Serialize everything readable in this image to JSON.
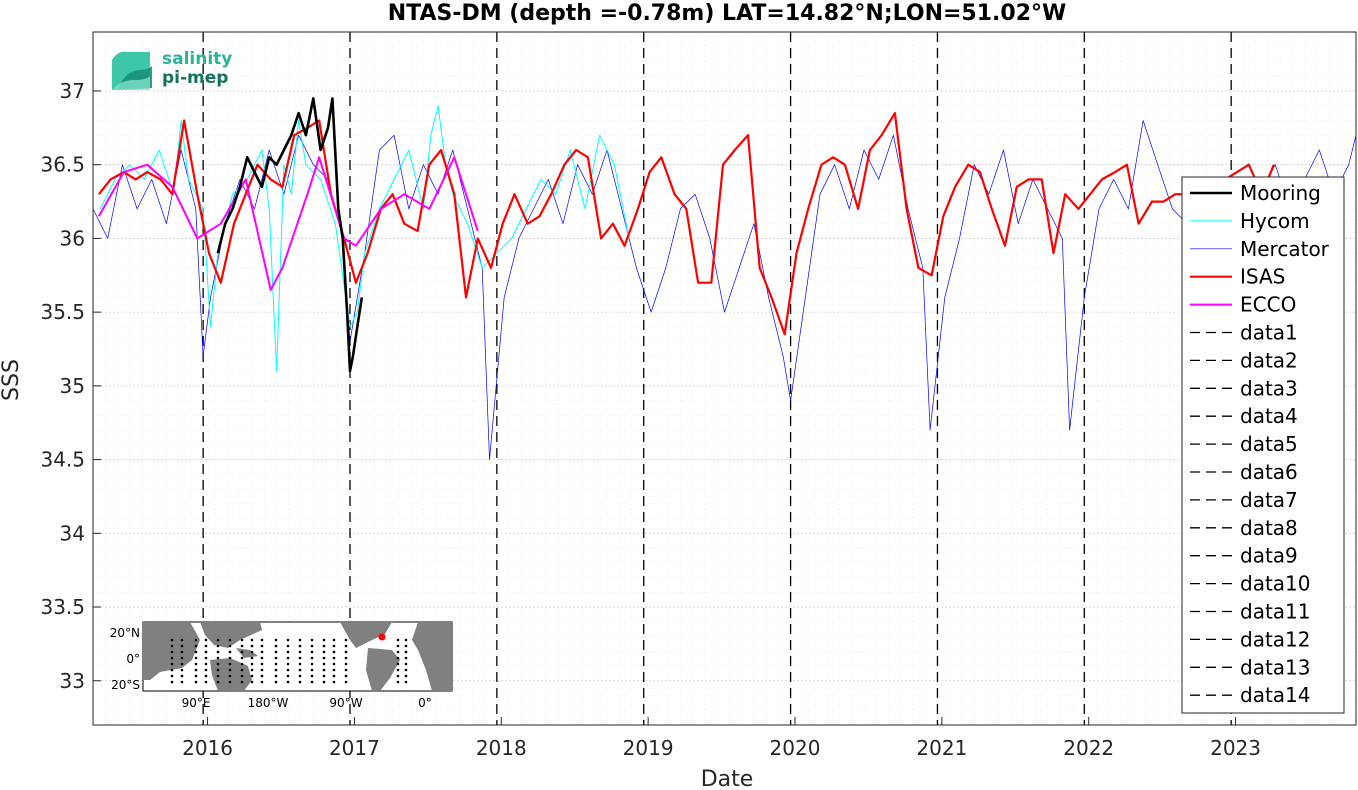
{
  "chart_data": {
    "type": "line",
    "title": "NTAS-DM (depth =-0.78m) LAT=14.82°N;LON=51.02°W",
    "xlabel": "Date",
    "ylabel": "SSS",
    "xlim": [
      2015.25,
      2023.85
    ],
    "ylim": [
      32.7,
      37.4
    ],
    "xticks": [
      2016,
      2017,
      2018,
      2019,
      2020,
      2021,
      2022,
      2023
    ],
    "xtick_labels": [
      "2016",
      "2017",
      "2018",
      "2019",
      "2020",
      "2021",
      "2022",
      "2023"
    ],
    "yticks": [
      33,
      33.5,
      34,
      34.5,
      35,
      35.5,
      36,
      36.5,
      37
    ],
    "ytick_labels": [
      "33",
      "33.5",
      "34",
      "34.5",
      "35",
      "35.5",
      "36",
      "36.5",
      "37"
    ],
    "grid": true,
    "legend_position": "right",
    "series": [
      {
        "name": "Mooring",
        "color": "#000000",
        "width": 2.6,
        "x": [
          2016.1,
          2016.15,
          2016.2,
          2016.25,
          2016.3,
          2016.35,
          2016.4,
          2016.45,
          2016.5,
          2016.55,
          2016.6,
          2016.65,
          2016.7,
          2016.75,
          2016.8,
          2016.85,
          2016.88,
          2016.92,
          2016.95,
          2016.98,
          2017.0,
          2017.02,
          2017.05,
          2017.08
        ],
        "y": [
          35.9,
          36.1,
          36.2,
          36.35,
          36.55,
          36.45,
          36.35,
          36.55,
          36.5,
          36.6,
          36.7,
          36.85,
          36.7,
          36.95,
          36.6,
          36.75,
          36.95,
          36.2,
          36.0,
          35.5,
          35.1,
          35.2,
          35.4,
          35.6
        ]
      },
      {
        "name": "Hycom",
        "color": "#00ffff",
        "width": 1,
        "x": [
          2015.3,
          2015.4,
          2015.5,
          2015.6,
          2015.7,
          2015.8,
          2015.85,
          2015.9,
          2015.95,
          2016.0,
          2016.05,
          2016.1,
          2016.2,
          2016.3,
          2016.4,
          2016.45,
          2016.5,
          2016.55,
          2016.6,
          2016.65,
          2016.7,
          2016.8,
          2016.9,
          2017.0,
          2017.05,
          2017.1,
          2017.2,
          2017.3,
          2017.4,
          2017.5,
          2017.55,
          2017.6,
          2017.65,
          2017.7,
          2017.8,
          2017.9,
          2018.0,
          2018.1,
          2018.2,
          2018.3,
          2018.4,
          2018.5,
          2018.6,
          2018.7,
          2018.8,
          2018.9
        ],
        "y": [
          36.2,
          36.4,
          36.5,
          36.4,
          36.6,
          36.3,
          36.8,
          36.4,
          36.3,
          36.2,
          35.4,
          35.9,
          36.3,
          36.4,
          36.6,
          36.2,
          35.1,
          36.5,
          36.3,
          36.8,
          36.5,
          36.4,
          36.1,
          35.4,
          35.5,
          35.9,
          36.2,
          36.4,
          36.6,
          36.2,
          36.7,
          36.9,
          36.5,
          36.3,
          36.1,
          35.8,
          35.9,
          36.0,
          36.2,
          36.4,
          36.3,
          36.6,
          36.2,
          36.7,
          36.5,
          36.0
        ]
      },
      {
        "name": "Mercator",
        "color": "#0000ff",
        "width": 0.7,
        "x": [
          2015.25,
          2015.35,
          2015.45,
          2015.55,
          2015.65,
          2015.75,
          2015.85,
          2015.95,
          2016.0,
          2016.05,
          2016.15,
          2016.25,
          2016.35,
          2016.45,
          2016.55,
          2016.65,
          2016.75,
          2016.85,
          2016.95,
          2017.0,
          2017.1,
          2017.2,
          2017.3,
          2017.4,
          2017.5,
          2017.6,
          2017.7,
          2017.8,
          2017.9,
          2017.95,
          2018.05,
          2018.15,
          2018.25,
          2018.35,
          2018.45,
          2018.55,
          2018.65,
          2018.75,
          2018.85,
          2018.95,
          2019.05,
          2019.15,
          2019.25,
          2019.35,
          2019.45,
          2019.55,
          2019.65,
          2019.75,
          2019.85,
          2019.95,
          2020.0,
          2020.1,
          2020.2,
          2020.3,
          2020.4,
          2020.5,
          2020.6,
          2020.7,
          2020.8,
          2020.9,
          2020.95,
          2021.05,
          2021.15,
          2021.25,
          2021.35,
          2021.45,
          2021.55,
          2021.65,
          2021.75,
          2021.85,
          2021.9,
          2022.0,
          2022.1,
          2022.2,
          2022.3,
          2022.4,
          2022.5,
          2022.6,
          2022.7,
          2022.8,
          2022.9,
          2023.0,
          2023.1,
          2023.2,
          2023.3,
          2023.4,
          2023.5,
          2023.6,
          2023.7,
          2023.8,
          2023.85
        ],
        "y": [
          36.2,
          36.0,
          36.5,
          36.2,
          36.4,
          36.1,
          36.6,
          36.2,
          35.2,
          35.6,
          36.1,
          36.4,
          36.2,
          36.6,
          36.3,
          36.7,
          36.5,
          36.4,
          36.0,
          35.3,
          35.9,
          36.6,
          36.7,
          36.2,
          36.5,
          36.3,
          36.6,
          36.2,
          35.8,
          34.5,
          35.6,
          36.0,
          36.2,
          36.4,
          36.1,
          36.5,
          36.3,
          36.6,
          36.2,
          35.8,
          35.5,
          35.8,
          36.2,
          36.3,
          36.0,
          35.5,
          35.8,
          36.1,
          35.6,
          35.2,
          34.9,
          35.6,
          36.3,
          36.5,
          36.2,
          36.6,
          36.4,
          36.7,
          36.2,
          35.8,
          34.7,
          35.6,
          36.0,
          36.5,
          36.3,
          36.6,
          36.1,
          36.4,
          36.2,
          36.0,
          34.7,
          35.6,
          36.2,
          36.4,
          36.2,
          36.8,
          36.5,
          36.2,
          36.1,
          35.9,
          35.6,
          35.8,
          36.0,
          36.3,
          36.5,
          36.2,
          36.4,
          36.6,
          36.3,
          36.5,
          36.7
        ]
      },
      {
        "name": "ISAS",
        "color": "#ff0000",
        "width": 2.2,
        "x": [
          2015.29,
          2015.37,
          2015.46,
          2015.54,
          2015.62,
          2015.71,
          2015.79,
          2015.87,
          2015.96,
          2016.04,
          2016.12,
          2016.21,
          2016.29,
          2016.37,
          2016.46,
          2016.54,
          2016.62,
          2016.71,
          2016.79,
          2016.87,
          2016.96,
          2017.04,
          2017.12,
          2017.21,
          2017.29,
          2017.37,
          2017.46,
          2017.54,
          2017.62,
          2017.71,
          2017.79,
          2017.87,
          2017.96,
          2018.04,
          2018.12,
          2018.21,
          2018.29,
          2018.37,
          2018.46,
          2018.54,
          2018.62,
          2018.71,
          2018.79,
          2018.87,
          2018.96,
          2019.04,
          2019.12,
          2019.21,
          2019.29,
          2019.37,
          2019.46,
          2019.54,
          2019.62,
          2019.71,
          2019.79,
          2019.87,
          2019.96,
          2020.04,
          2020.12,
          2020.21,
          2020.29,
          2020.37,
          2020.46,
          2020.54,
          2020.62,
          2020.71,
          2020.79,
          2020.87,
          2020.96,
          2021.04,
          2021.12,
          2021.21,
          2021.29,
          2021.37,
          2021.46,
          2021.54,
          2021.62,
          2021.71,
          2021.79,
          2021.87,
          2021.96,
          2022.04,
          2022.12,
          2022.21,
          2022.29,
          2022.37,
          2022.46,
          2022.54,
          2022.62,
          2022.71,
          2022.79,
          2022.87,
          2022.96,
          2023.04,
          2023.12,
          2023.21,
          2023.29
        ],
        "y": [
          36.3,
          36.4,
          36.45,
          36.4,
          36.45,
          36.4,
          36.3,
          36.8,
          36.3,
          35.9,
          35.7,
          36.1,
          36.3,
          36.5,
          36.4,
          36.35,
          36.7,
          36.75,
          36.8,
          36.3,
          36.0,
          35.7,
          35.9,
          36.2,
          36.3,
          36.1,
          36.05,
          36.5,
          36.6,
          36.3,
          35.6,
          36.0,
          35.8,
          36.1,
          36.3,
          36.1,
          36.15,
          36.3,
          36.5,
          36.6,
          36.55,
          36.0,
          36.1,
          35.95,
          36.2,
          36.45,
          36.55,
          36.3,
          36.2,
          35.7,
          35.7,
          36.5,
          36.6,
          36.7,
          35.8,
          35.6,
          35.35,
          35.9,
          36.2,
          36.5,
          36.55,
          36.5,
          36.2,
          36.6,
          36.7,
          36.85,
          36.2,
          35.8,
          35.75,
          36.15,
          36.35,
          36.5,
          36.45,
          36.2,
          35.95,
          36.35,
          36.4,
          36.4,
          35.9,
          36.3,
          36.2,
          36.3,
          36.4,
          36.45,
          36.5,
          36.1,
          36.25,
          36.25,
          36.3,
          36.3,
          36.2,
          36.35,
          36.4,
          36.45,
          36.5,
          36.3,
          36.5
        ]
      },
      {
        "name": "ECCO",
        "color": "#ff00ff",
        "width": 2,
        "x": [
          2015.29,
          2015.46,
          2015.62,
          2015.79,
          2015.96,
          2016.12,
          2016.29,
          2016.46,
          2016.54,
          2016.71,
          2016.79,
          2016.96,
          2017.04,
          2017.21,
          2017.37,
          2017.54,
          2017.71,
          2017.87
        ],
        "y": [
          36.15,
          36.45,
          36.5,
          36.35,
          36.0,
          36.1,
          36.4,
          35.65,
          35.8,
          36.3,
          36.55,
          36.0,
          35.95,
          36.2,
          36.3,
          36.2,
          36.55,
          36.05
        ]
      }
    ],
    "vlines": [
      2016,
      2017,
      2018,
      2019,
      2020,
      2021,
      2022,
      2023
    ],
    "legend": [
      "Mooring",
      "Hycom",
      "Mercator",
      "ISAS",
      "ECCO",
      "data1",
      "data2",
      "data3",
      "data4",
      "data5",
      "data6",
      "data7",
      "data8",
      "data9",
      "data10",
      "data11",
      "data12",
      "data13",
      "data14"
    ]
  },
  "logo": {
    "line1": "salinity",
    "line2": "pi-mep"
  },
  "inset_map": {
    "lat_labels": [
      "20°N",
      "0°",
      "20°S"
    ],
    "lon_labels": [
      "90°E",
      "180°W",
      "90°W",
      "0°"
    ],
    "marker_color": "#ff0000"
  }
}
